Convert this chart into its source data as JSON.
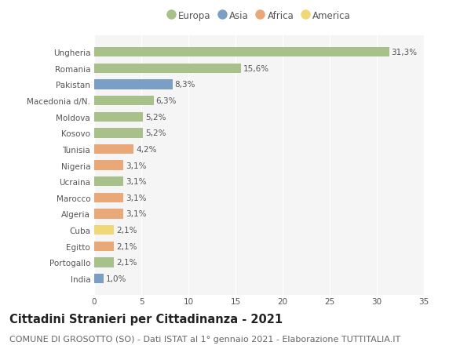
{
  "countries": [
    "Ungheria",
    "Romania",
    "Pakistan",
    "Macedonia d/N.",
    "Moldova",
    "Kosovo",
    "Tunisia",
    "Nigeria",
    "Ucraina",
    "Marocco",
    "Algeria",
    "Cuba",
    "Egitto",
    "Portogallo",
    "India"
  ],
  "values": [
    31.3,
    15.6,
    8.3,
    6.3,
    5.2,
    5.2,
    4.2,
    3.1,
    3.1,
    3.1,
    3.1,
    2.1,
    2.1,
    2.1,
    1.0
  ],
  "labels": [
    "31,3%",
    "15,6%",
    "8,3%",
    "6,3%",
    "5,2%",
    "5,2%",
    "4,2%",
    "3,1%",
    "3,1%",
    "3,1%",
    "3,1%",
    "2,1%",
    "2,1%",
    "2,1%",
    "1,0%"
  ],
  "continents": [
    "Europa",
    "Europa",
    "Asia",
    "Europa",
    "Europa",
    "Europa",
    "Africa",
    "Africa",
    "Europa",
    "Africa",
    "Africa",
    "America",
    "Africa",
    "Europa",
    "Asia"
  ],
  "continent_colors": {
    "Europa": "#a8c08a",
    "Asia": "#7b9ec4",
    "Africa": "#e8a878",
    "America": "#f0d878"
  },
  "legend_order": [
    "Europa",
    "Asia",
    "Africa",
    "America"
  ],
  "title": "Cittadini Stranieri per Cittadinanza - 2021",
  "subtitle": "COMUNE DI GROSOTTO (SO) - Dati ISTAT al 1° gennaio 2021 - Elaborazione TUTTITALIA.IT",
  "xlim": [
    0,
    35
  ],
  "xticks": [
    0,
    5,
    10,
    15,
    20,
    25,
    30,
    35
  ],
  "background_color": "#ffffff",
  "plot_bg_color": "#f5f5f5",
  "grid_color": "#ffffff",
  "bar_height": 0.6,
  "title_fontsize": 10.5,
  "subtitle_fontsize": 8,
  "label_fontsize": 7.5,
  "tick_fontsize": 7.5,
  "legend_fontsize": 8.5
}
